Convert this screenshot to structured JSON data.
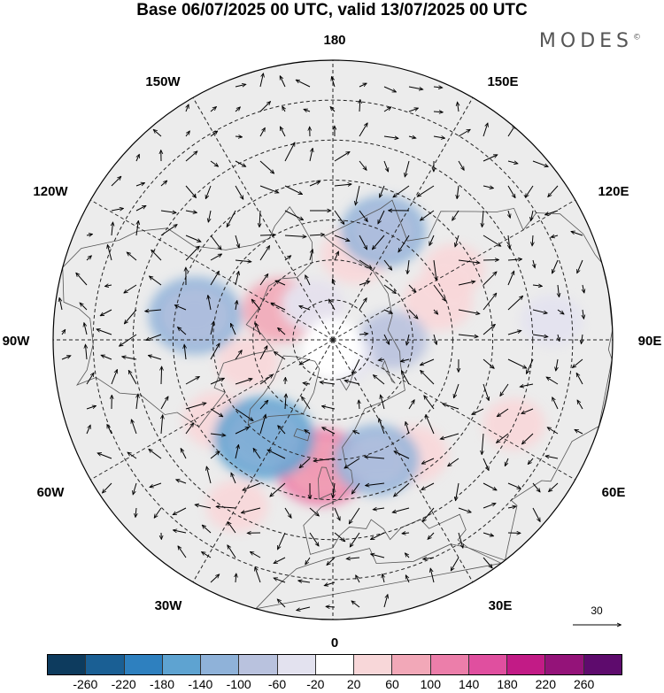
{
  "title": "Base 06/07/2025 00 UTC, valid 13/07/2025 00 UTC",
  "brand": "MODES",
  "brand_mark": "©",
  "longitude_labels": {
    "top": "180",
    "bottom": "0",
    "left": "90W",
    "right": "90E",
    "top_left": "150W",
    "top_right": "150E",
    "upper_left": "120W",
    "upper_right": "120E",
    "lower_left": "60W",
    "lower_right": "60E",
    "bottom_left": "30W",
    "bottom_right": "30E"
  },
  "reference_vector": "30",
  "colorbar": {
    "colors": [
      "#0d3b5e",
      "#1a5f94",
      "#2e80bf",
      "#5ea3d1",
      "#8fb2d9",
      "#b9c2de",
      "#e3e2ef",
      "#ffffff",
      "#f8d7d9",
      "#f2a8b8",
      "#ec7eaa",
      "#e04f9f",
      "#c21b86",
      "#941379",
      "#5e0b6d"
    ],
    "labels": [
      "-260",
      "-220",
      "-180",
      "-140",
      "-100",
      "-60",
      "-20",
      "20",
      "60",
      "100",
      "140",
      "180",
      "220",
      "260"
    ]
  },
  "anomaly_fields": {
    "positive": [
      {
        "lat": 75,
        "lon": -120,
        "value": 80
      },
      {
        "lat": 80,
        "lon": -150,
        "value": 40
      },
      {
        "lat": 68,
        "lon": 165,
        "value": 60
      },
      {
        "lat": 62,
        "lon": 110,
        "value": 60
      },
      {
        "lat": 55,
        "lon": 120,
        "value": 40
      },
      {
        "lat": 55,
        "lon": -55,
        "value": 60
      },
      {
        "lat": 58,
        "lon": -5,
        "value": 120
      },
      {
        "lat": 55,
        "lon": 35,
        "value": 60
      },
      {
        "lat": 68,
        "lon": -75,
        "value": 40
      },
      {
        "lat": 40,
        "lon": 65,
        "value": 40
      },
      {
        "lat": 42,
        "lon": -30,
        "value": 40
      }
    ],
    "negative": [
      {
        "lat": 60,
        "lon": 155,
        "value": -100
      },
      {
        "lat": 55,
        "lon": -100,
        "value": -120
      },
      {
        "lat": 60,
        "lon": -35,
        "value": -140
      },
      {
        "lat": 58,
        "lon": 20,
        "value": -100
      },
      {
        "lat": 75,
        "lon": 90,
        "value": -60
      },
      {
        "lat": 80,
        "lon": -150,
        "value": -40
      },
      {
        "lat": 35,
        "lon": 95,
        "value": -40
      },
      {
        "lat": 85,
        "lon": 30,
        "value": -40
      }
    ]
  }
}
